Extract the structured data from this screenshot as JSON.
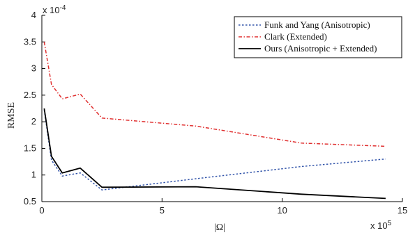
{
  "chart_data": {
    "type": "line",
    "title": "",
    "xlabel": "|Ω|",
    "ylabel": "RMSE",
    "x_multiplier_label": "x 10",
    "x_multiplier_exp": "5",
    "y_multiplier_label": "x 10",
    "y_multiplier_exp": "-4",
    "xlim": [
      0,
      15
    ],
    "ylim": [
      0.5,
      4
    ],
    "x_ticks": [
      0,
      5,
      10,
      15
    ],
    "x_tick_labels": [
      "0",
      "5",
      "10",
      "15"
    ],
    "y_ticks": [
      0.5,
      1,
      1.5,
      2,
      2.5,
      3,
      3.5,
      4
    ],
    "y_tick_labels": [
      "0.5",
      "1",
      "1.5",
      "2",
      "2.5",
      "3",
      "3.5",
      "4"
    ],
    "grid": false,
    "legend_position": "top-right",
    "series": [
      {
        "name": "Funk and Yang (Anisotropic)",
        "color": "#3355aa",
        "dash": "dotted",
        "x": [
          0.1,
          0.4,
          0.85,
          1.6,
          2.5,
          6.4,
          10.8,
          14.3
        ],
        "y": [
          2.22,
          1.28,
          0.98,
          1.04,
          0.72,
          0.93,
          1.16,
          1.3
        ]
      },
      {
        "name": "Clark (Extended)",
        "color": "#e03030",
        "dash": "dashdot",
        "x": [
          0.1,
          0.4,
          0.85,
          1.6,
          2.5,
          6.4,
          10.8,
          14.3
        ],
        "y": [
          3.5,
          2.7,
          2.43,
          2.52,
          2.07,
          1.92,
          1.6,
          1.54
        ]
      },
      {
        "name": "Ours (Anisotropic + Extended)",
        "color": "#000000",
        "dash": "solid",
        "x": [
          0.1,
          0.4,
          0.85,
          1.6,
          2.5,
          6.4,
          10.8,
          14.3
        ],
        "y": [
          2.25,
          1.35,
          1.04,
          1.13,
          0.77,
          0.78,
          0.64,
          0.56
        ]
      }
    ]
  }
}
